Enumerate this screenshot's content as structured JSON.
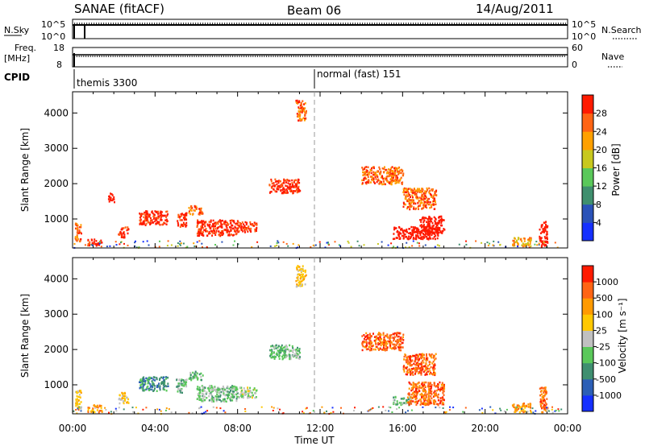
{
  "header": {
    "station": "SANAE (fitACF)",
    "beam": "Beam 06",
    "date": "14/Aug/2011"
  },
  "top_panels": {
    "nsky_label": "N.Sky",
    "nsky_ticks": [
      "10^5",
      "10^0"
    ],
    "nsearch_label": "N.Search",
    "nsearch_ticks": [
      "10^5",
      "10^0"
    ],
    "freq_label": "Freq.",
    "freq_unit": "[MHz]",
    "freq_ticks": [
      "18",
      "8"
    ],
    "nave_label": "Nave",
    "nave_ticks": [
      "60",
      "0"
    ],
    "cpid_label": "CPID",
    "cpid_left": "themis 3300",
    "cpid_right": "normal (fast) 151"
  },
  "chart_data": [
    {
      "type": "heatmap",
      "title": "",
      "xlabel": "",
      "ylabel": "Slant Range [km]",
      "xlim": [
        0,
        24
      ],
      "ylim": [
        180,
        4600
      ],
      "yticks": [
        "1000",
        "2000",
        "3000",
        "4000"
      ],
      "colorbar": {
        "label": "Power [dB]",
        "ticks": [
          "4",
          "8",
          "12",
          "16",
          "20",
          "24",
          "28"
        ],
        "colors": [
          "#1530ff",
          "#2a52b8",
          "#3f8f6e",
          "#5ac85a",
          "#c8c81e",
          "#ffa000",
          "#ff6414",
          "#ff1a00"
        ]
      },
      "regions": [
        {
          "t": [
            0.1,
            0.4
          ],
          "r": [
            350,
            900
          ],
          "v": 6
        },
        {
          "t": [
            0.7,
            1.4
          ],
          "r": [
            250,
            450
          ],
          "v": 7
        },
        {
          "t": [
            1.7,
            2.0
          ],
          "r": [
            1500,
            1750
          ],
          "v": 8
        },
        {
          "t": [
            2.2,
            2.7
          ],
          "r": [
            500,
            800
          ],
          "v": 7
        },
        {
          "t": [
            3.2,
            4.6
          ],
          "r": [
            850,
            1250
          ],
          "v": 7
        },
        {
          "t": [
            5.0,
            5.5
          ],
          "r": [
            800,
            1200
          ],
          "v": 7
        },
        {
          "t": [
            5.6,
            6.3
          ],
          "r": [
            1150,
            1400
          ],
          "v": 6
        },
        {
          "t": [
            6.0,
            8.0
          ],
          "r": [
            550,
            1000
          ],
          "v": 7
        },
        {
          "t": [
            8.0,
            8.9
          ],
          "r": [
            650,
            950
          ],
          "v": 7
        },
        {
          "t": [
            9.5,
            11.0
          ],
          "r": [
            1750,
            2150
          ],
          "v": 7
        },
        {
          "t": [
            10.8,
            11.3
          ],
          "r": [
            3800,
            4400
          ],
          "v": 6
        },
        {
          "t": [
            14.0,
            16.0
          ],
          "r": [
            2000,
            2500
          ],
          "v": 6
        },
        {
          "t": [
            16.0,
            17.6
          ],
          "r": [
            1300,
            1900
          ],
          "v": 6
        },
        {
          "t": [
            15.5,
            17.7
          ],
          "r": [
            450,
            800
          ],
          "v": 11
        },
        {
          "t": [
            16.8,
            18.0
          ],
          "r": [
            600,
            1100
          ],
          "v": 14
        },
        {
          "t": [
            21.3,
            22.2
          ],
          "r": [
            250,
            500
          ],
          "v": 5
        },
        {
          "t": [
            22.6,
            23.0
          ],
          "r": [
            250,
            950
          ],
          "v": 8
        }
      ]
    },
    {
      "type": "heatmap",
      "title": "",
      "xlabel": "Time UT",
      "ylabel": "Slant Range [km]",
      "xlim": [
        0,
        24
      ],
      "ylim": [
        180,
        4600
      ],
      "xticks": [
        "00:00",
        "04:00",
        "08:00",
        "12:00",
        "16:00",
        "20:00",
        "00:00"
      ],
      "yticks": [
        "1000",
        "2000",
        "3000",
        "4000"
      ],
      "colorbar": {
        "label": "Velocity [m s⁻¹]",
        "ticks": [
          "1000",
          "500",
          "100",
          "25",
          "-25",
          "-100",
          "-500",
          "-1000"
        ],
        "colors": [
          "#1530ff",
          "#2c5fb6",
          "#3f8f70",
          "#5ac85a",
          "#c0c0c0",
          "#ffc800",
          "#ff9a00",
          "#ff6414",
          "#ff1a00"
        ]
      },
      "regions": [
        {
          "t": [
            0.1,
            0.4
          ],
          "r": [
            350,
            900
          ],
          "v": 5
        },
        {
          "t": [
            0.7,
            1.4
          ],
          "r": [
            250,
            450
          ],
          "v": 6
        },
        {
          "t": [
            2.2,
            2.7
          ],
          "r": [
            500,
            800
          ],
          "v": 5
        },
        {
          "t": [
            3.2,
            4.6
          ],
          "r": [
            850,
            1250
          ],
          "v": 2
        },
        {
          "t": [
            5.0,
            5.5
          ],
          "r": [
            800,
            1200
          ],
          "v": 3
        },
        {
          "t": [
            5.6,
            6.3
          ],
          "r": [
            1150,
            1400
          ],
          "v": 3
        },
        {
          "t": [
            6.0,
            8.0
          ],
          "r": [
            550,
            1000
          ],
          "v": 3
        },
        {
          "t": [
            8.0,
            8.9
          ],
          "r": [
            650,
            950
          ],
          "v": 4
        },
        {
          "t": [
            9.5,
            11.0
          ],
          "r": [
            1750,
            2150
          ],
          "v": 3
        },
        {
          "t": [
            10.8,
            11.3
          ],
          "r": [
            3800,
            4400
          ],
          "v": 5
        },
        {
          "t": [
            14.0,
            16.0
          ],
          "r": [
            2000,
            2500
          ],
          "v": 7
        },
        {
          "t": [
            16.0,
            17.6
          ],
          "r": [
            1300,
            1900
          ],
          "v": 7
        },
        {
          "t": [
            15.5,
            16.4
          ],
          "r": [
            450,
            700
          ],
          "v": 3
        },
        {
          "t": [
            16.2,
            18.0
          ],
          "r": [
            450,
            1100
          ],
          "v": 7
        },
        {
          "t": [
            21.3,
            22.2
          ],
          "r": [
            250,
            500
          ],
          "v": 6
        },
        {
          "t": [
            22.6,
            23.0
          ],
          "r": [
            250,
            950
          ],
          "v": 7
        }
      ]
    }
  ]
}
